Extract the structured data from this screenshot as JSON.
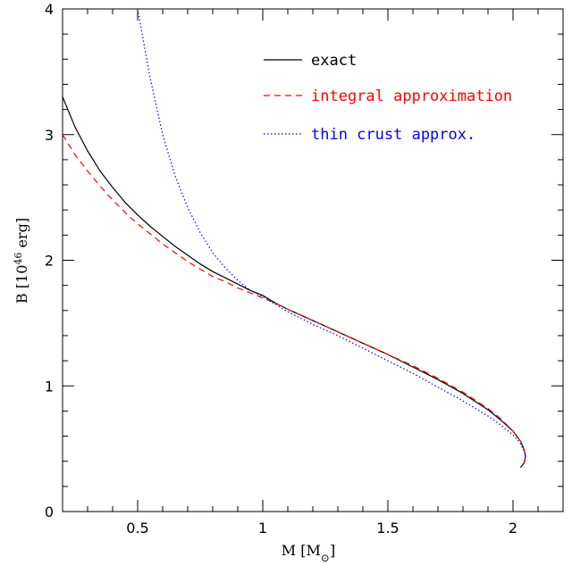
{
  "chart_data": {
    "type": "line",
    "title": "",
    "xlabel": {
      "prefix": "M [M",
      "sub": "⊙",
      "suffix": "]"
    },
    "ylabel": {
      "prefix": "B [10",
      "sup": "46",
      "suffix": " erg]"
    },
    "xlim": [
      0.2,
      2.2
    ],
    "ylim": [
      0,
      4
    ],
    "x_ticks": [
      {
        "value": 0.5,
        "label": "0.5"
      },
      {
        "value": 1.0,
        "label": "1"
      },
      {
        "value": 1.5,
        "label": "1.5"
      },
      {
        "value": 2.0,
        "label": "2"
      }
    ],
    "y_ticks": [
      {
        "value": 0,
        "label": "0"
      },
      {
        "value": 1,
        "label": "1"
      },
      {
        "value": 2,
        "label": "2"
      },
      {
        "value": 3,
        "label": "3"
      },
      {
        "value": 4,
        "label": "4"
      }
    ],
    "grid": false,
    "legend_position": "top-right",
    "series": [
      {
        "name": "exact",
        "color": "#000000",
        "dash": "solid",
        "points": [
          [
            0.2,
            3.3
          ],
          [
            0.25,
            3.06
          ],
          [
            0.3,
            2.87
          ],
          [
            0.35,
            2.71
          ],
          [
            0.4,
            2.58
          ],
          [
            0.45,
            2.46
          ],
          [
            0.5,
            2.36
          ],
          [
            0.55,
            2.27
          ],
          [
            0.6,
            2.19
          ],
          [
            0.65,
            2.11
          ],
          [
            0.7,
            2.04
          ],
          [
            0.75,
            1.97
          ],
          [
            0.8,
            1.91
          ],
          [
            0.85,
            1.86
          ],
          [
            0.9,
            1.81
          ],
          [
            0.95,
            1.76
          ],
          [
            1.0,
            1.72
          ],
          [
            1.05,
            1.66
          ],
          [
            1.1,
            1.61
          ],
          [
            1.2,
            1.52
          ],
          [
            1.3,
            1.43
          ],
          [
            1.4,
            1.34
          ],
          [
            1.5,
            1.25
          ],
          [
            1.6,
            1.15
          ],
          [
            1.7,
            1.05
          ],
          [
            1.8,
            0.94
          ],
          [
            1.9,
            0.81
          ],
          [
            1.95,
            0.73
          ],
          [
            2.0,
            0.64
          ],
          [
            2.03,
            0.56
          ],
          [
            2.045,
            0.49
          ],
          [
            2.05,
            0.44
          ],
          [
            2.045,
            0.39
          ],
          [
            2.03,
            0.35
          ]
        ]
      },
      {
        "name": "integral approximation",
        "color": "#ff0000",
        "dash": "dashed",
        "points": [
          [
            0.2,
            3.0
          ],
          [
            0.25,
            2.84
          ],
          [
            0.3,
            2.71
          ],
          [
            0.35,
            2.59
          ],
          [
            0.4,
            2.48
          ],
          [
            0.45,
            2.38
          ],
          [
            0.5,
            2.29
          ],
          [
            0.55,
            2.21
          ],
          [
            0.6,
            2.13
          ],
          [
            0.65,
            2.06
          ],
          [
            0.7,
            1.99
          ],
          [
            0.75,
            1.93
          ],
          [
            0.8,
            1.87
          ],
          [
            0.85,
            1.83
          ],
          [
            0.9,
            1.78
          ],
          [
            0.95,
            1.74
          ],
          [
            1.0,
            1.7
          ],
          [
            1.05,
            1.66
          ],
          [
            1.1,
            1.61
          ],
          [
            1.2,
            1.52
          ],
          [
            1.3,
            1.43
          ],
          [
            1.4,
            1.34
          ],
          [
            1.5,
            1.25
          ],
          [
            1.6,
            1.16
          ],
          [
            1.7,
            1.06
          ],
          [
            1.8,
            0.95
          ],
          [
            1.9,
            0.82
          ],
          [
            1.95,
            0.74
          ],
          [
            2.0,
            0.64
          ],
          [
            2.03,
            0.56
          ],
          [
            2.045,
            0.49
          ],
          [
            2.05,
            0.44
          ],
          [
            2.045,
            0.39
          ],
          [
            2.03,
            0.35
          ]
        ]
      },
      {
        "name": "thin crust approx.",
        "color": "#0000ff",
        "dash": "dotted",
        "points": [
          [
            0.5,
            4.0
          ],
          [
            0.55,
            3.45
          ],
          [
            0.6,
            3.0
          ],
          [
            0.65,
            2.67
          ],
          [
            0.7,
            2.42
          ],
          [
            0.75,
            2.22
          ],
          [
            0.8,
            2.06
          ],
          [
            0.85,
            1.94
          ],
          [
            0.9,
            1.84
          ],
          [
            0.95,
            1.76
          ],
          [
            1.0,
            1.71
          ],
          [
            1.05,
            1.65
          ],
          [
            1.1,
            1.59
          ],
          [
            1.2,
            1.49
          ],
          [
            1.3,
            1.4
          ],
          [
            1.4,
            1.3
          ],
          [
            1.5,
            1.2
          ],
          [
            1.6,
            1.1
          ],
          [
            1.7,
            0.99
          ],
          [
            1.8,
            0.88
          ],
          [
            1.9,
            0.76
          ],
          [
            1.95,
            0.69
          ],
          [
            2.0,
            0.61
          ],
          [
            2.03,
            0.54
          ],
          [
            2.045,
            0.48
          ],
          [
            2.05,
            0.44
          ],
          [
            2.045,
            0.39
          ],
          [
            2.03,
            0.35
          ]
        ]
      }
    ]
  }
}
